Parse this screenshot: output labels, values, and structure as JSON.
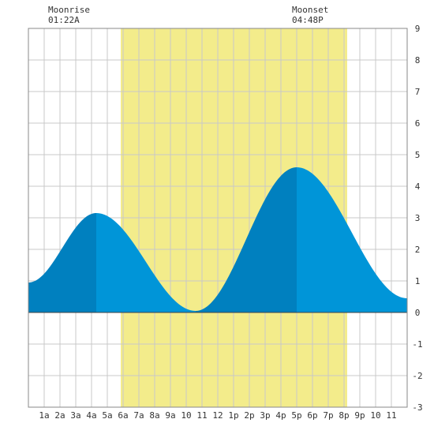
{
  "moon": {
    "moonrise_label": "Moonrise",
    "moonrise_time": "01:22A",
    "moonset_label": "Moonset",
    "moonset_time": "04:48P"
  },
  "chart_data": {
    "type": "area",
    "x_tick_labels": [
      "1a",
      "2a",
      "3a",
      "4a",
      "5a",
      "6a",
      "7a",
      "8a",
      "9a",
      "10",
      "11",
      "12",
      "1p",
      "2p",
      "3p",
      "4p",
      "5p",
      "6p",
      "7p",
      "8p",
      "9p",
      "10",
      "11"
    ],
    "y_tick_labels": [
      "9",
      "8",
      "7",
      "6",
      "5",
      "4",
      "3",
      "2",
      "1",
      "0",
      "-1",
      "-2",
      "-3"
    ],
    "xlim_hours": [
      0,
      24
    ],
    "ylim": [
      -3,
      9
    ],
    "daylight_hours": [
      5.85,
      20.2
    ],
    "moonrise_hour": 1.37,
    "moonset_hour": 16.8,
    "tide_extrema": [
      {
        "hour": 0.0,
        "height": 0.95
      },
      {
        "hour": 4.3,
        "height": 3.15
      },
      {
        "hour": 10.6,
        "height": 0.05
      },
      {
        "hour": 17.0,
        "height": 4.6
      },
      {
        "hour": 24.0,
        "height": 0.45
      }
    ],
    "grid": true,
    "colors": {
      "background": "#ffffff",
      "daylight": "#f3ec8b",
      "tide_rising": "#0080bf",
      "tide_falling": "#0095d8",
      "grid": "#c8c8c8",
      "frame": "#888888",
      "zero_line": "#444444"
    }
  }
}
